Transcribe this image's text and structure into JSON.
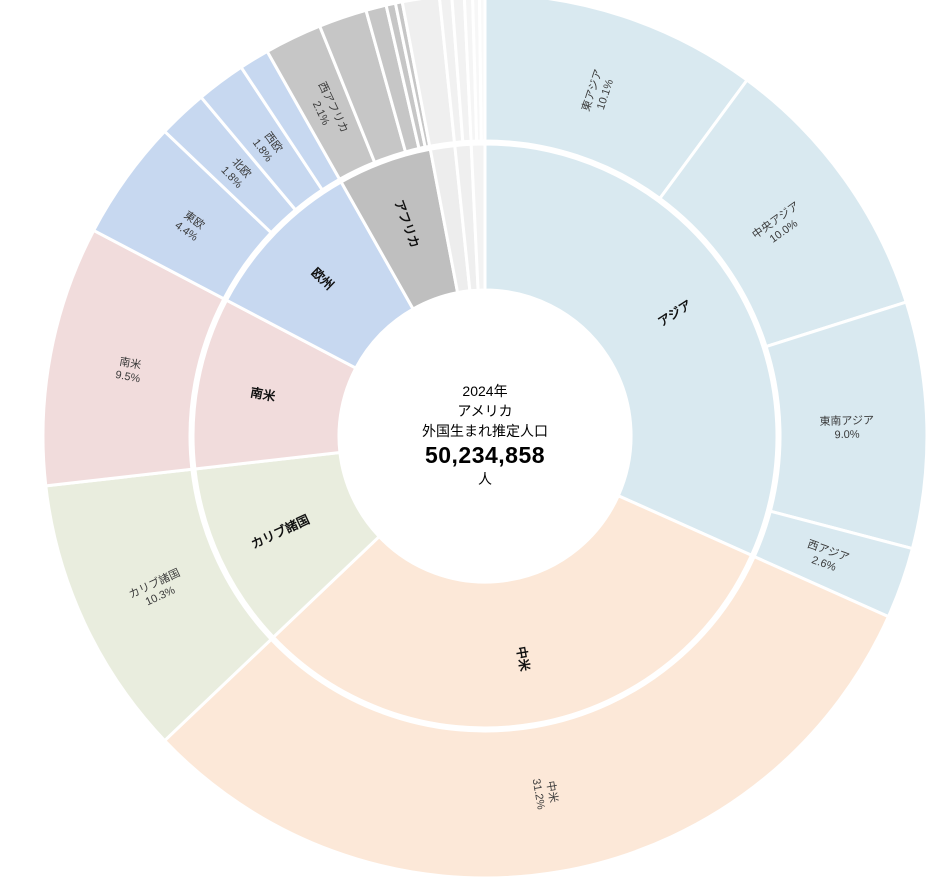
{
  "page": {
    "background": "#ffffff"
  },
  "chart_data": {
    "type": "sunburst",
    "layout": "two-ring donut, starts at 12 o'clock, clockwise",
    "center": {
      "year": "2024年",
      "place": "アメリカ",
      "measure": "外国生まれ推定人口",
      "value": "50,234,858",
      "unit": "人"
    },
    "stroke_color": "#ffffff",
    "categories": [
      {
        "label": "アジア",
        "value": 31.7,
        "color": "#d9e9f0",
        "children": [
          {
            "label": "東アジア",
            "pct_label": "10.1%",
            "value": 10.1
          },
          {
            "label": "中央アジア",
            "pct_label": "10.0%",
            "value": 10.0
          },
          {
            "label": "東南アジア",
            "pct_label": "9.0%",
            "value": 9.0
          },
          {
            "label": "西アジア",
            "pct_label": "2.6%",
            "value": 2.6
          }
        ]
      },
      {
        "label": "中米",
        "value": 31.2,
        "color": "#fce8d8",
        "children": [
          {
            "label": "中米",
            "pct_label": "31.2%",
            "value": 31.2
          }
        ]
      },
      {
        "label": "カリブ諸国",
        "value": 10.3,
        "color": "#e9edde",
        "children": [
          {
            "label": "カリブ諸国",
            "pct_label": "10.3%",
            "value": 10.3
          }
        ]
      },
      {
        "label": "南米",
        "value": 9.5,
        "color": "#f1dcdc",
        "children": [
          {
            "label": "南米",
            "pct_label": "9.5%",
            "value": 9.5
          }
        ]
      },
      {
        "label": "欧州",
        "value": 9.1,
        "color": "#c7d8f0",
        "children": [
          {
            "label": "東欧",
            "pct_label": "4.4%",
            "value": 4.4
          },
          {
            "label": "北欧",
            "pct_label": "1.8%",
            "value": 1.8
          },
          {
            "label": "西欧",
            "pct_label": "1.8%",
            "value": 1.8
          },
          {
            "label": "",
            "pct_label": "",
            "value": 1.1
          }
        ]
      },
      {
        "label": "アフリカ",
        "value": 5.2,
        "color": "#bfbfbf",
        "outer_color": "#c6c6c6",
        "children": [
          {
            "label": "西アフリカ",
            "pct_label": "2.1%",
            "value": 2.1
          },
          {
            "label": "",
            "pct_label": "",
            "value": 1.76
          },
          {
            "label": "",
            "pct_label": "",
            "value": 0.75
          },
          {
            "label": "",
            "pct_label": "",
            "value": 0.34
          },
          {
            "label": "",
            "pct_label": "",
            "value": 0.25
          }
        ]
      },
      {
        "label": "",
        "value": 1.35,
        "color": "#ededed",
        "children": [
          {
            "label": "",
            "pct_label": "",
            "value": 1.35,
            "color": "#efefef"
          }
        ]
      },
      {
        "label": "",
        "value": 0.9,
        "color": "#efefef",
        "children": [
          {
            "label": "",
            "pct_label": "",
            "value": 0.45,
            "color": "#f1f1f1"
          },
          {
            "label": "",
            "pct_label": "",
            "value": 0.45,
            "color": "#f2f2f2"
          }
        ]
      },
      {
        "label": "",
        "value": 0.75,
        "color": "#f3f3f3",
        "children": [
          {
            "label": "",
            "pct_label": "",
            "value": 0.3,
            "color": "#f5f5f5"
          },
          {
            "label": "",
            "pct_label": "",
            "value": 0.25,
            "color": "#f7f7f7"
          },
          {
            "label": "",
            "pct_label": "",
            "value": 0.2,
            "color": "#f9f9f9"
          }
        ]
      }
    ]
  }
}
